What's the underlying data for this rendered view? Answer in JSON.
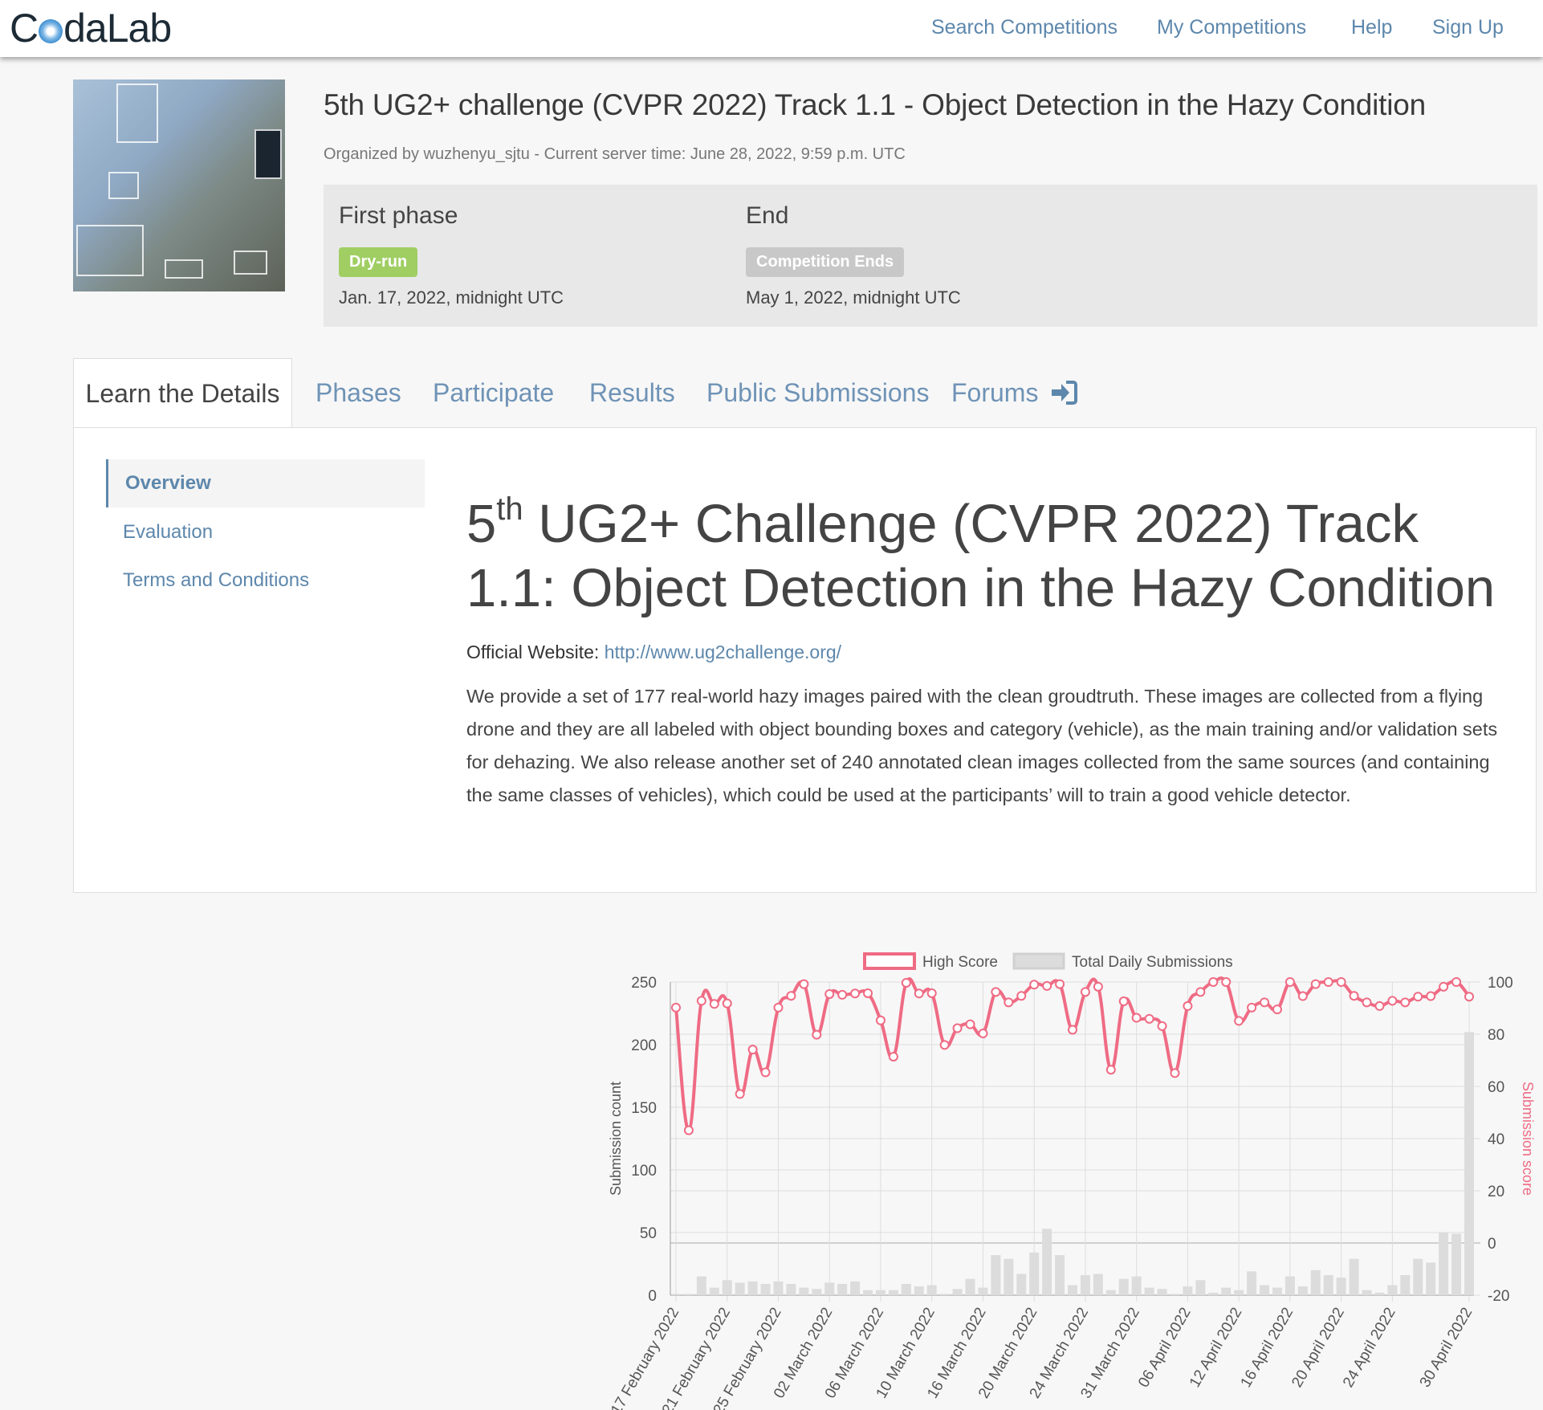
{
  "header": {
    "logo_text": "CodaLab",
    "nav": [
      "Search Competitions",
      "My Competitions",
      "Help",
      "Sign Up"
    ]
  },
  "competition": {
    "title": "5th UG2+ challenge (CVPR 2022) Track 1.1 - Object Detection in the Hazy Condition",
    "organizer_line": "Organized by wuzhenyu_sjtu - Current server time: June 28, 2022, 9:59 p.m. UTC",
    "phases": [
      {
        "title": "First phase",
        "badge": "Dry-run",
        "badge_color": "#a0ce63",
        "date": "Jan. 17, 2022, midnight UTC"
      },
      {
        "title": "End",
        "badge": "Competition Ends",
        "badge_color": "#c8c8c8",
        "date": "May 1, 2022, midnight UTC"
      }
    ]
  },
  "tabs": [
    "Learn the Details",
    "Phases",
    "Participate",
    "Results",
    "Public Submissions",
    "Forums"
  ],
  "sidebar": [
    "Overview",
    "Evaluation",
    "Terms and Conditions"
  ],
  "overview": {
    "heading_pre": "5",
    "heading_sup": "th",
    "heading_rest": " UG2+ Challenge (CVPR 2022) Track 1.1: Object Detection in the Hazy Condition",
    "website_label": "Official Website: ",
    "website_url": "http://www.ug2challenge.org/",
    "paragraph": "We provide a set of 177 real-world hazy images paired with the clean groudtruth. These images are collected from a flying drone and they are all labeled with object bounding boxes and category (vehicle), as the main training and/or validation sets for dehazing. We also release another set of 240 annotated clean images collected from the same sources (and containing the same classes of vehicles), which could be used at the participants’ will to train a good vehicle detector."
  },
  "chart_data": {
    "type": "bar+line",
    "legend": [
      "High Score",
      "Total Daily Submissions"
    ],
    "legend_placement": "top",
    "ylabel_left": "Submission count",
    "ylabel_right": "Submission score",
    "ylim_left": [
      0,
      250
    ],
    "yticks_left": [
      0,
      50,
      100,
      150,
      200,
      250
    ],
    "ylim_right": [
      -20,
      100
    ],
    "yticks_right": [
      -20,
      0,
      20,
      40,
      60,
      80,
      100
    ],
    "grid": true,
    "colors": {
      "line": "#ef6b84",
      "bar": "#dcdcdc"
    },
    "categories": [
      "17 February 2022",
      "",
      "",
      "",
      "21 February 2022",
      "",
      "",
      "",
      "25 February 2022",
      "",
      "",
      "",
      "02 March 2022",
      "",
      "",
      "",
      "06 March 2022",
      "",
      "",
      "",
      "10 March 2022",
      "",
      "",
      "",
      "16 March 2022",
      "",
      "",
      "",
      "20 March 2022",
      "",
      "",
      "",
      "24 March 2022",
      "",
      "",
      "",
      "31 March 2022",
      "",
      "",
      "",
      "06 April 2022",
      "",
      "",
      "",
      "12 April 2022",
      "",
      "",
      "",
      "16 April 2022",
      "",
      "",
      "",
      "20 April 2022",
      "",
      "",
      "",
      "24 April 2022",
      "",
      "",
      "",
      "",
      "",
      "30 April 2022"
    ],
    "series": [
      {
        "name": "High Score",
        "type": "line",
        "axis": "right",
        "values": [
          90.2,
          43.2,
          92.8,
          91.6,
          91.8,
          57.1,
          74.1,
          65.4,
          90.2,
          94.7,
          99.2,
          79.8,
          95.4,
          95.1,
          95.6,
          95.7,
          85.3,
          71.4,
          99.7,
          95.6,
          95.7,
          75.9,
          82.3,
          83.8,
          80.3,
          96.2,
          92.2,
          94.7,
          99,
          98.5,
          99.2,
          81.7,
          96.2,
          98.2,
          66.4,
          92.6,
          86.3,
          85.9,
          83.1,
          65.1,
          90.8,
          96.2,
          100,
          100,
          85.1,
          90.2,
          92.2,
          89.5,
          100,
          94.6,
          99.2,
          100,
          100,
          94.7,
          92.2,
          90.8,
          92.8,
          92.2,
          94.4,
          94.6,
          98.2,
          100,
          94.4
        ]
      },
      {
        "name": "Total Daily Submissions",
        "type": "bar",
        "axis": "left",
        "values": [
          1,
          1,
          15,
          6,
          12,
          10,
          11,
          9,
          11,
          9,
          6,
          5,
          10,
          9,
          11,
          4,
          4,
          4,
          9,
          7,
          8,
          1,
          5,
          13,
          6,
          32,
          29,
          17,
          34,
          53,
          32,
          8,
          16,
          17,
          4,
          13,
          15,
          6,
          5,
          1,
          7,
          12,
          2,
          6,
          4,
          19,
          8,
          6,
          15,
          7,
          20,
          16,
          14,
          29,
          4,
          2,
          8,
          16,
          29,
          26,
          50,
          49,
          210
        ]
      }
    ]
  }
}
